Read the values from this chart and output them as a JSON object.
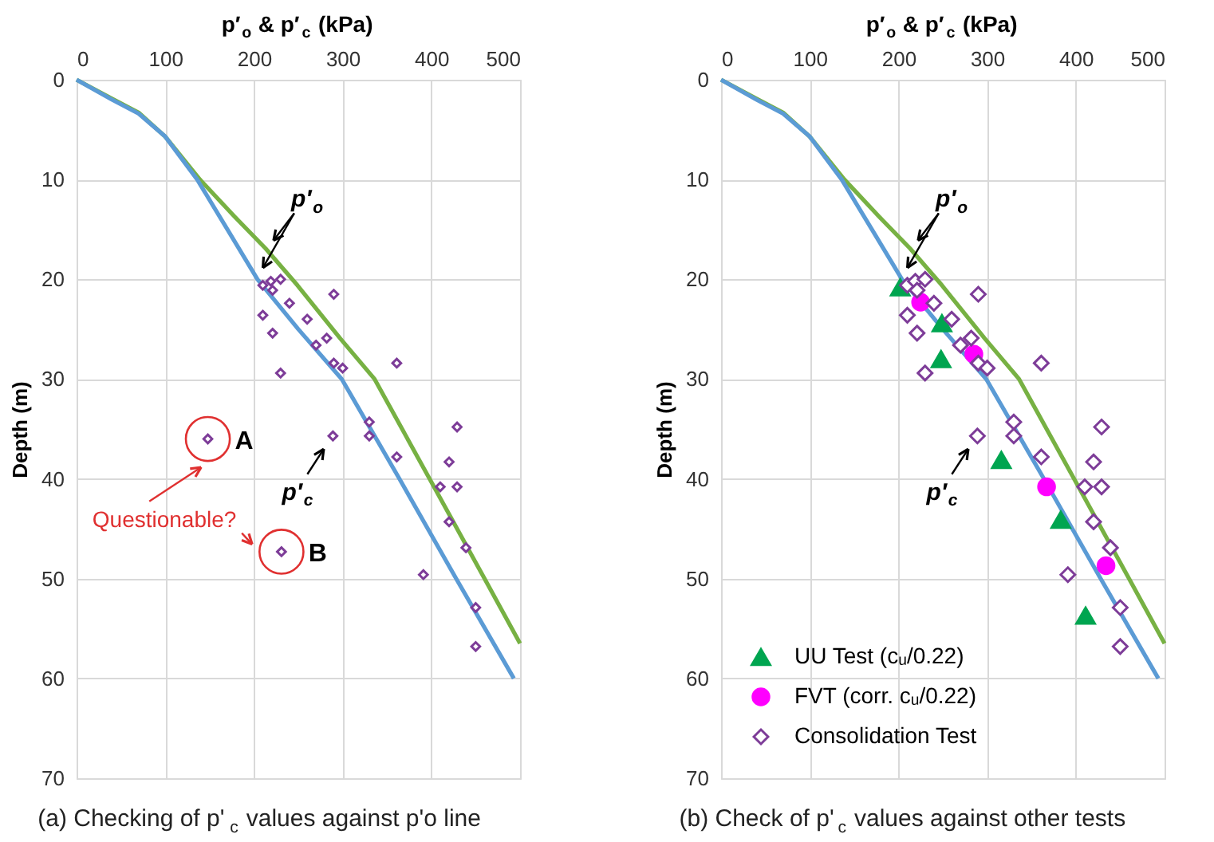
{
  "chart_data": [
    {
      "type": "scatter",
      "title": "(a) Checking of p'$_{c}$ values against p'o line",
      "xlabel": "p′$_{o}$ & p′$_{c}$ (kPa)",
      "ylabel": "Depth (m)",
      "xlim": [
        0,
        500
      ],
      "xticks": [
        0,
        100,
        200,
        300,
        400,
        500
      ],
      "ylim": [
        70,
        0
      ],
      "yticks": [
        0,
        10,
        20,
        30,
        40,
        50,
        60,
        70
      ],
      "grid": true,
      "legend": false,
      "series": [
        {
          "type": "line",
          "color": "#77b143",
          "marker": "none",
          "x": [
            0,
            40,
            70,
            100,
            139,
            178,
            213,
            249,
            297,
            336,
            398,
            460,
            500
          ],
          "values": [
            0,
            1.9,
            3.3,
            5.7,
            10,
            13.7,
            16.9,
            20.6,
            25.9,
            30,
            40,
            50,
            56.5
          ]
        },
        {
          "type": "line",
          "color": "#5b9bd5",
          "marker": "none",
          "x": [
            0,
            40,
            70,
            100,
            136,
            170,
            204,
            250,
            299,
            364,
            428,
            493
          ],
          "values": [
            0,
            2,
            3.4,
            5.7,
            10,
            15,
            20,
            25,
            30,
            40,
            50,
            60
          ]
        },
        {
          "color": "#7d3c98",
          "marker": "diamond",
          "x": [
            210,
            219,
            230,
            221,
            290,
            240,
            210,
            260,
            221,
            282,
            270,
            290,
            300,
            361,
            230,
            148,
            289,
            330,
            330,
            429,
            361,
            420,
            410,
            429,
            420,
            231,
            439,
            391,
            450,
            450
          ],
          "values": [
            20.6,
            20.2,
            20.0,
            21.1,
            21.5,
            22.4,
            23.6,
            24.0,
            25.4,
            25.9,
            26.6,
            28.4,
            28.9,
            28.4,
            29.4,
            36.0,
            35.7,
            34.3,
            35.7,
            34.8,
            37.8,
            38.3,
            40.8,
            40.8,
            44.3,
            47.3,
            46.9,
            49.6,
            52.9,
            56.8
          ]
        }
      ],
      "annotations": [
        {
          "text": "p′$_{o}$",
          "x": 213,
          "y": 16.9
        },
        {
          "text": "p′$_{c}$",
          "x": 289,
          "y": 35.7
        },
        {
          "text": "A",
          "x": 148,
          "y": 36.0
        },
        {
          "text": "B",
          "x": 231,
          "y": 47.3
        },
        "Questionable?"
      ]
    },
    {
      "type": "scatter",
      "title": "(b) Check of p'$_{c}$ values against other tests",
      "xlabel": "p′$_{o}$ & p′$_{c}$ (kPa)",
      "ylabel": "Depth (m)",
      "xlim": [
        0,
        500
      ],
      "xticks": [
        0,
        100,
        200,
        300,
        400,
        500
      ],
      "ylim": [
        70,
        0
      ],
      "yticks": [
        0,
        10,
        20,
        30,
        40,
        50,
        60,
        70
      ],
      "grid": true,
      "legend": "bottom left",
      "series": [
        {
          "type": "line",
          "color": "#77b143",
          "marker": "none",
          "x": [
            0,
            40,
            70,
            100,
            139,
            178,
            213,
            249,
            297,
            336,
            398,
            460,
            500
          ],
          "values": [
            0,
            1.9,
            3.3,
            5.7,
            10,
            13.7,
            16.9,
            20.6,
            25.9,
            30,
            40,
            50,
            56.5
          ]
        },
        {
          "type": "line",
          "color": "#5b9bd5",
          "marker": "none",
          "x": [
            0,
            40,
            70,
            100,
            136,
            170,
            204,
            250,
            299,
            364,
            428,
            493
          ],
          "values": [
            0,
            2,
            3.4,
            5.7,
            10,
            15,
            20,
            25,
            30,
            40,
            50,
            60
          ]
        },
        {
          "name": "UU Test (cᵤ/0.22)",
          "color": "#00a550",
          "marker": "triangle",
          "x": [
            202,
            249,
            248,
            316,
            383,
            411
          ],
          "values": [
            20.8,
            24.4,
            28.0,
            38.1,
            44.1,
            53.7
          ]
        },
        {
          "name": "FVT (corr. cᵤ/0.22)",
          "color": "#ff00ff",
          "marker": "circle",
          "x": [
            225,
            285,
            367,
            434
          ],
          "values": [
            22.3,
            27.5,
            40.8,
            48.7
          ]
        },
        {
          "name": "Consolidation Test",
          "color": "#7d3c98",
          "marker": "diamond",
          "x": [
            210,
            219,
            230,
            221,
            290,
            240,
            210,
            260,
            221,
            282,
            270,
            290,
            300,
            361,
            230,
            289,
            330,
            330,
            429,
            361,
            420,
            410,
            429,
            420,
            439,
            391,
            450,
            450
          ],
          "values": [
            20.6,
            20.2,
            20.0,
            21.1,
            21.5,
            22.4,
            23.6,
            24.0,
            25.4,
            25.9,
            26.6,
            28.4,
            28.9,
            28.4,
            29.4,
            35.7,
            34.3,
            35.7,
            34.8,
            37.8,
            38.3,
            40.8,
            40.8,
            44.3,
            46.9,
            49.6,
            52.9,
            56.8
          ]
        }
      ],
      "annotations": [
        {
          "text": "p′$_{o}$",
          "x": 213,
          "y": 16.9
        },
        {
          "text": "p′$_{c}$",
          "x": 289,
          "y": 35.7
        }
      ]
    }
  ]
}
